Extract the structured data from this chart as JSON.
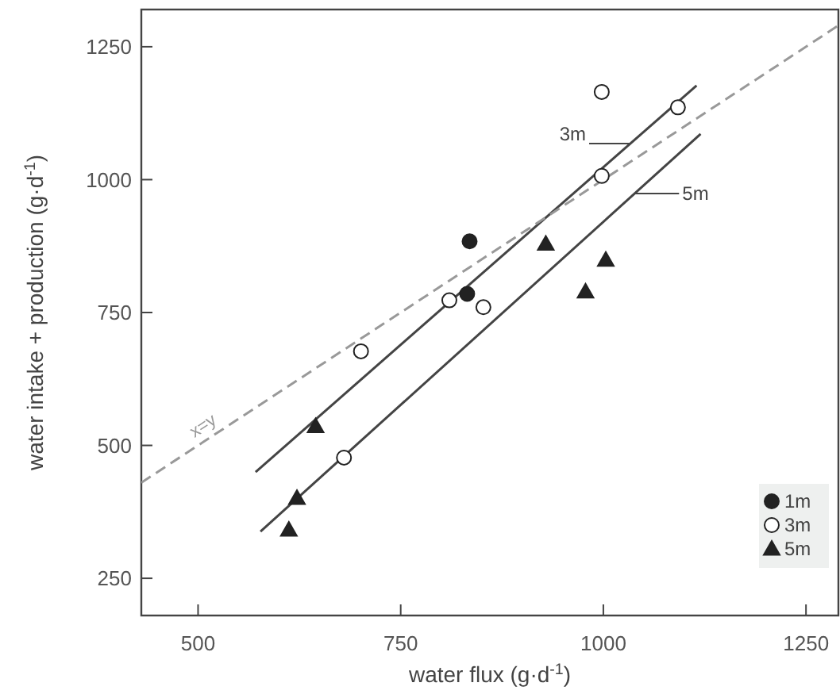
{
  "chart_data": {
    "type": "scatter",
    "xlabel": "water flux (g·d$^{-1}$)",
    "ylabel": "water intake + production (g·d$^{-1}$)",
    "xlim": [
      430,
      1290
    ],
    "ylim": [
      180,
      1320
    ],
    "xticks": [
      500,
      750,
      1000,
      1250
    ],
    "yticks": [
      250,
      500,
      750,
      1000,
      1250
    ],
    "grid": false,
    "legend": "bottom right",
    "series": [
      {
        "name": "1m",
        "color": "#222222",
        "marker": "circle",
        "x": [
          835,
          832
        ],
        "values": [
          884,
          785
        ]
      },
      {
        "name": "3m",
        "color": "#ffffff",
        "marker": "circle",
        "x": [
          998,
          1092,
          998,
          810,
          852,
          701,
          680
        ],
        "values": [
          1165,
          1136,
          1007,
          773,
          760,
          677,
          477
        ]
      },
      {
        "name": "5m",
        "color": "#222222",
        "marker": "triangle",
        "x": [
          929,
          1003,
          978,
          645,
          622,
          612
        ],
        "values": [
          879,
          849,
          789,
          536,
          401,
          341
        ]
      },
      {
        "name": "3m",
        "type": "line",
        "color": "#444444",
        "line_style": "solid",
        "marker": "none",
        "x": [
          571,
          1115
        ],
        "values": [
          450,
          1177
        ]
      },
      {
        "name": "5m",
        "type": "line",
        "color": "#444444",
        "line_style": "solid",
        "marker": "none",
        "x": [
          577,
          1120
        ],
        "values": [
          338,
          1086
        ]
      },
      {
        "name": "x=y",
        "type": "line",
        "color": "#999999",
        "line_style": "dashed",
        "marker": "none",
        "x": [
          430,
          1290
        ],
        "values": [
          430,
          1290
        ]
      }
    ]
  }
}
